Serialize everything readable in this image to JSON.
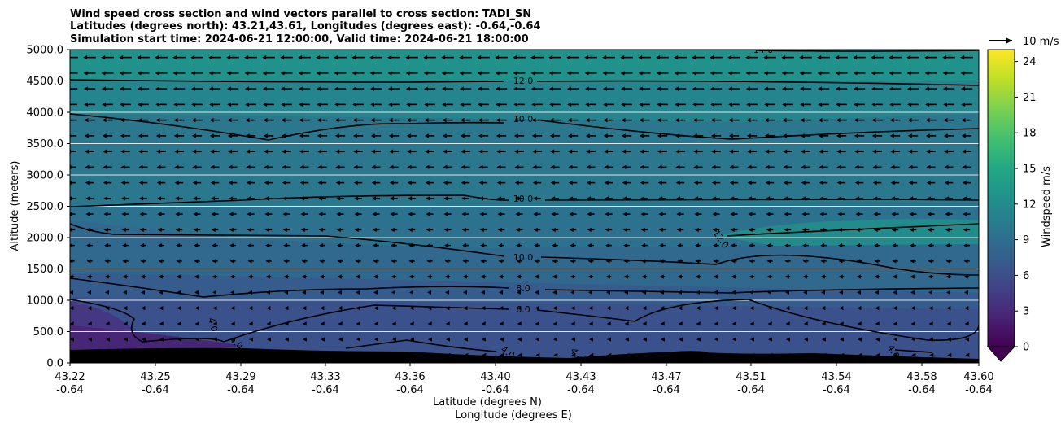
{
  "chart_data": {
    "type": "contour",
    "title_lines": [
      "Wind speed cross section and wind vectors parallel to cross section: TADI_SN",
      "Latitudes (degrees north): 43.21,43.61, Longitudes (degrees east): -0.64,-0.64",
      "Simulation start time: 2024-06-21 12:00:00, Valid time: 2024-06-21 18:00:00"
    ],
    "xlabel": "Latitude (degrees N)",
    "xlabel2": "Longitude (degrees E)",
    "ylabel": "Altitude (meters)",
    "x_ticks": [
      {
        "lat": "43.22",
        "lon": "-0.64"
      },
      {
        "lat": "43.25",
        "lon": "-0.64"
      },
      {
        "lat": "43.29",
        "lon": "-0.64"
      },
      {
        "lat": "43.33",
        "lon": "-0.64"
      },
      {
        "lat": "43.36",
        "lon": "-0.64"
      },
      {
        "lat": "43.40",
        "lon": "-0.64"
      },
      {
        "lat": "43.43",
        "lon": "-0.64"
      },
      {
        "lat": "43.47",
        "lon": "-0.64"
      },
      {
        "lat": "43.51",
        "lon": "-0.64"
      },
      {
        "lat": "43.54",
        "lon": "-0.64"
      },
      {
        "lat": "43.58",
        "lon": "-0.64"
      },
      {
        "lat": "43.60",
        "lon": "-0.64"
      }
    ],
    "y_ticks": [
      "0.0",
      "500.0",
      "1000.0",
      "1500.0",
      "2000.0",
      "2500.0",
      "3000.0",
      "3500.0",
      "4000.0",
      "4500.0",
      "5000.0"
    ],
    "ylim": [
      0,
      5000
    ],
    "grid": "horizontal",
    "colorbar": {
      "label": "Windspeed m/s",
      "range": [
        0,
        25
      ],
      "ticks": [
        "0",
        "3",
        "6",
        "9",
        "12",
        "15",
        "18",
        "21",
        "24"
      ],
      "colormap": "viridis",
      "extend": "min"
    },
    "vector_key": "10 m/s",
    "contour_labels": [
      "4.0",
      "4.0",
      "4.0",
      "4.0",
      "4.0",
      "6.0",
      "8.0",
      "10.0",
      "10.0",
      "10.0",
      "12.0",
      "12.0",
      "14.0"
    ],
    "colors": {
      "terrain": "#000000",
      "contour": "#000000",
      "grid": "#e6e6e6"
    }
  }
}
